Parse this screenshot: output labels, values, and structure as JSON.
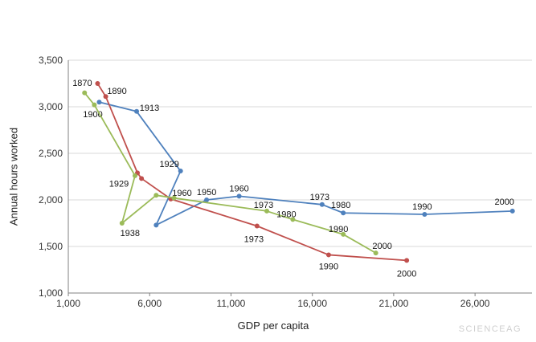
{
  "watermark": "SCIENCEAG",
  "chart_data": {
    "type": "line",
    "title": "",
    "xlabel": "GDP per capita",
    "ylabel": "Annual hours worked",
    "xlim": [
      1000,
      29500
    ],
    "ylim": [
      1000,
      3500
    ],
    "x_ticks": [
      1000,
      6000,
      11000,
      16000,
      21000,
      26000
    ],
    "y_ticks": [
      1000,
      1500,
      2000,
      2500,
      3000,
      3500
    ],
    "grid": "horizontal",
    "legend": "none",
    "series": [
      {
        "name": "series-blue",
        "color": "#4f81bd",
        "points": [
          {
            "year": 1900,
            "gdp": 2900,
            "hours": 3050,
            "label": "1900",
            "dx": -8,
            "dy": 15
          },
          {
            "year": 1913,
            "gdp": 5200,
            "hours": 2950,
            "label": "1913",
            "dx": 16,
            "dy": -5
          },
          {
            "year": 1929,
            "gdp": 7900,
            "hours": 2310,
            "label": "1929",
            "dx": -14,
            "dy": -9
          },
          {
            "year": 1938,
            "gdp": 6400,
            "hours": 1730,
            "label": "",
            "dx": 0,
            "dy": 0
          },
          {
            "year": 1950,
            "gdp": 9500,
            "hours": 2000,
            "label": "1950",
            "dx": 0,
            "dy": -10
          },
          {
            "year": 1960,
            "gdp": 11500,
            "hours": 2040,
            "label": "1960",
            "dx": 0,
            "dy": -10
          },
          {
            "year": 1973,
            "gdp": 16600,
            "hours": 1950,
            "label": "1973",
            "dx": -3,
            "dy": -10
          },
          {
            "year": 1980,
            "gdp": 17900,
            "hours": 1860,
            "label": "1980",
            "dx": -3,
            "dy": -10
          },
          {
            "year": 1990,
            "gdp": 22900,
            "hours": 1845,
            "label": "1990",
            "dx": -3,
            "dy": -10
          },
          {
            "year": 2000,
            "gdp": 28300,
            "hours": 1880,
            "label": "2000",
            "dx": -10,
            "dy": -12
          }
        ]
      },
      {
        "name": "series-red",
        "color": "#c0504d",
        "points": [
          {
            "year": 1870,
            "gdp": 2800,
            "hours": 3250,
            "label": "1870",
            "dx": -19,
            "dy": -1
          },
          {
            "year": 1890,
            "gdp": 3300,
            "hours": 3110,
            "label": "1890",
            "dx": 14,
            "dy": -7
          },
          {
            "year": 1929,
            "gdp": 5250,
            "hours": 2290,
            "label": "1929",
            "dx": -23,
            "dy": 13
          },
          {
            "year": 1938,
            "gdp": 5500,
            "hours": 2230,
            "label": "",
            "dx": 0,
            "dy": 0
          },
          {
            "year": 1960,
            "gdp": 7300,
            "hours": 2010,
            "label": "1960",
            "dx": 14,
            "dy": -8
          },
          {
            "year": 1973,
            "gdp": 12600,
            "hours": 1720,
            "label": "1973",
            "dx": -4,
            "dy": 16
          },
          {
            "year": 1990,
            "gdp": 17000,
            "hours": 1410,
            "label": "1990",
            "dx": 0,
            "dy": 14
          },
          {
            "year": 2000,
            "gdp": 21800,
            "hours": 1350,
            "label": "2000",
            "dx": 0,
            "dy": 16
          }
        ]
      },
      {
        "name": "series-green",
        "color": "#9bbb59",
        "points": [
          {
            "year": 1870,
            "gdp": 2000,
            "hours": 3150,
            "label": "",
            "dx": 0,
            "dy": 0
          },
          {
            "year": 1900,
            "gdp": 2600,
            "hours": 3020,
            "label": "",
            "dx": 0,
            "dy": 0
          },
          {
            "year": 1929,
            "gdp": 5100,
            "hours": 2260,
            "label": "",
            "dx": 0,
            "dy": 0
          },
          {
            "year": 1938,
            "gdp": 4300,
            "hours": 1750,
            "label": "1938",
            "dx": 10,
            "dy": 12
          },
          {
            "year": 1950,
            "gdp": 6400,
            "hours": 2050,
            "label": "",
            "dx": 0,
            "dy": 0
          },
          {
            "year": 1960,
            "gdp": 7500,
            "hours": 2020,
            "label": "",
            "dx": 0,
            "dy": 0
          },
          {
            "year": 1973,
            "gdp": 13200,
            "hours": 1880,
            "label": "1973",
            "dx": -4,
            "dy": -8
          },
          {
            "year": 1980,
            "gdp": 14800,
            "hours": 1790,
            "label": "1980",
            "dx": -8,
            "dy": -7
          },
          {
            "year": 1990,
            "gdp": 17900,
            "hours": 1630,
            "label": "1990",
            "dx": -6,
            "dy": -7
          },
          {
            "year": 2000,
            "gdp": 19900,
            "hours": 1430,
            "label": "2000",
            "dx": 8,
            "dy": -9
          }
        ]
      }
    ]
  }
}
